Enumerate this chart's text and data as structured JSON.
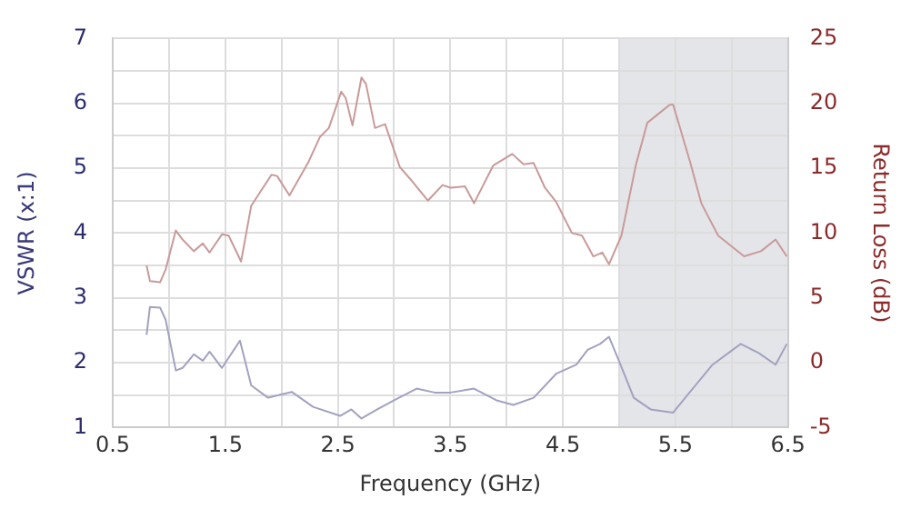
{
  "chart_data": {
    "type": "line",
    "xlabel": "Frequency (GHz)",
    "ylabel": "VSWR (x:1)",
    "y2label": "Return Loss (dB)",
    "xlim": [
      0.5,
      6.5
    ],
    "xticks": [
      0.5,
      {
        "value": 1,
        "label": null
      },
      1.5,
      {
        "value": 2,
        "label": null
      },
      2.5,
      {
        "value": 3,
        "label": null
      },
      3.5,
      {
        "value": 4,
        "label": null
      },
      4.5,
      {
        "value": 5,
        "label": null
      },
      5.5,
      {
        "value": 6,
        "label": null
      },
      6.5
    ],
    "ylim": [
      1,
      7
    ],
    "yticks": [
      1,
      {
        "value": 1.5,
        "label": null
      },
      2,
      {
        "value": 2.5,
        "label": null
      },
      3,
      {
        "value": 3.5,
        "label": null
      },
      4,
      {
        "value": 4.5,
        "label": null
      },
      5,
      {
        "value": 5.5,
        "label": null
      },
      6,
      {
        "value": 6.5,
        "label": null
      },
      7
    ],
    "y2lim": [
      -5,
      25
    ],
    "y2ticks": [
      -5,
      0,
      5,
      10,
      15,
      20,
      25
    ],
    "grid": true,
    "legend": false,
    "marker": "none",
    "line_style": "solid",
    "bands": [
      {
        "axis": "x",
        "from": 5,
        "to": 6.5,
        "color": "#e4e5e8"
      }
    ],
    "series": [
      {
        "color": "#c99a9a",
        "axis": "y2",
        "x": [
          0.8,
          0.83,
          0.92,
          0.97,
          1.06,
          1.12,
          1.22,
          1.3,
          1.36,
          1.47,
          1.53,
          1.64,
          1.73,
          1.91,
          1.96,
          2.07,
          2.24,
          2.34,
          2.42,
          2.53,
          2.57,
          2.63,
          2.71,
          2.75,
          2.83,
          2.92,
          3.05,
          3.14,
          3.3,
          3.43,
          3.5,
          3.63,
          3.71,
          3.88,
          4.05,
          4.15,
          4.24,
          4.34,
          4.44,
          4.58,
          4.67,
          4.77,
          4.85,
          4.91,
          5.02,
          5.15,
          5.25,
          5.35,
          5.45,
          5.48,
          5.63,
          5.73,
          5.88,
          6.11,
          6.26,
          6.39,
          6.49
        ],
        "values": [
          7.5,
          6.3,
          6.2,
          7.2,
          10.2,
          9.5,
          8.6,
          9.2,
          8.5,
          9.9,
          9.8,
          7.8,
          12.1,
          14.5,
          14.4,
          12.9,
          15.5,
          17.4,
          18.1,
          20.9,
          20.4,
          18.3,
          22.0,
          21.5,
          18.1,
          18.4,
          15.1,
          14.2,
          12.5,
          13.7,
          13.5,
          13.6,
          12.3,
          15.2,
          16.1,
          15.3,
          15.4,
          13.5,
          12.4,
          10.0,
          9.8,
          8.2,
          8.5,
          7.6,
          9.8,
          15.3,
          18.5,
          19.2,
          19.9,
          19.9,
          15.5,
          12.3,
          9.8,
          8.2,
          8.6,
          9.5,
          8.2
        ]
      },
      {
        "color": "#a2a2c0",
        "x": [
          0.8,
          0.83,
          0.92,
          0.97,
          1.06,
          1.12,
          1.22,
          1.3,
          1.36,
          1.47,
          1.63,
          1.73,
          1.88,
          2.09,
          2.28,
          2.52,
          2.62,
          2.71,
          2.85,
          3.0,
          3.2,
          3.36,
          3.5,
          3.71,
          3.91,
          4.06,
          4.24,
          4.44,
          4.62,
          4.72,
          4.83,
          4.91,
          5.0,
          5.13,
          5.28,
          5.48,
          5.63,
          5.83,
          6.08,
          6.24,
          6.39,
          6.49
        ],
        "values": [
          2.43,
          2.86,
          2.85,
          2.66,
          1.88,
          1.92,
          2.13,
          2.03,
          2.17,
          1.92,
          2.34,
          1.65,
          1.46,
          1.55,
          1.32,
          1.18,
          1.28,
          1.14,
          1.28,
          1.42,
          1.6,
          1.54,
          1.54,
          1.6,
          1.42,
          1.35,
          1.46,
          1.83,
          1.97,
          2.2,
          2.29,
          2.4,
          2.02,
          1.46,
          1.28,
          1.23,
          1.55,
          1.97,
          2.29,
          2.15,
          1.97,
          2.29
        ]
      }
    ]
  }
}
